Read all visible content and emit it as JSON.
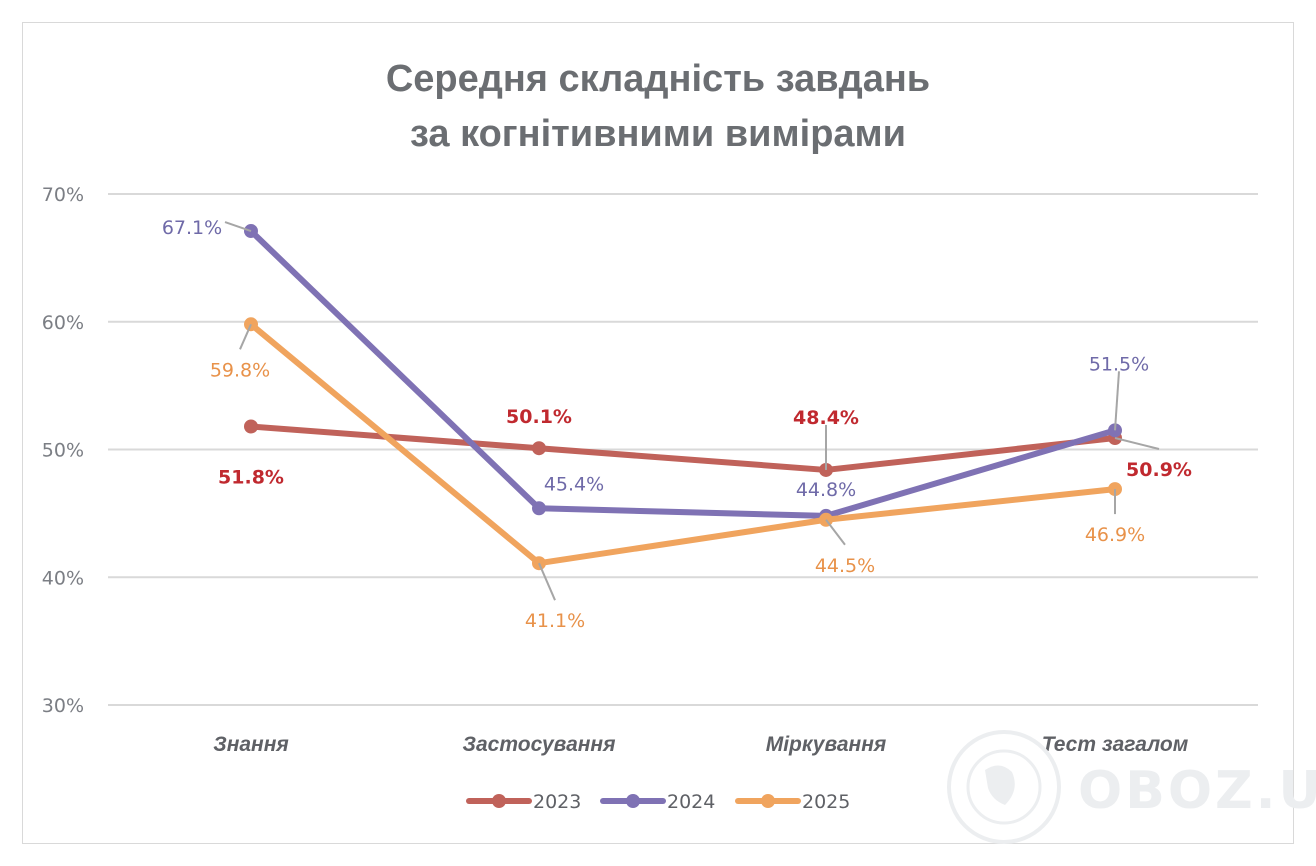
{
  "chart_data": {
    "type": "line",
    "title_lines": [
      "Середня  складність завдань",
      "за когнітивними вимірами"
    ],
    "categories": [
      "Знання",
      "Застосування",
      "Міркування",
      "Тест загалом"
    ],
    "y_ticks": [
      "30%",
      "40%",
      "50%",
      "60%",
      "70%"
    ],
    "ylim": [
      30,
      70
    ],
    "grid": true,
    "legend_position": "bottom",
    "series": [
      {
        "name": "2023",
        "color": "#c0625a",
        "values": [
          51.8,
          50.1,
          48.4,
          50.9
        ],
        "labels": [
          "51.8%",
          "50.1%",
          "48.4%",
          "50.9%"
        ],
        "label_color": "#c0292f",
        "label_bold": true
      },
      {
        "name": "2024",
        "color": "#7f72b4",
        "values": [
          67.1,
          45.4,
          44.8,
          51.5
        ],
        "labels": [
          "67.1%",
          "45.4%",
          "44.8%",
          "51.5%"
        ],
        "label_color": "#6f6aa8",
        "label_bold": false
      },
      {
        "name": "2025",
        "color": "#f0a45e",
        "values": [
          59.8,
          41.1,
          44.5,
          46.9
        ],
        "labels": [
          "59.8%",
          "41.1%",
          "44.5%",
          "46.9%"
        ],
        "label_color": "#e8924a",
        "label_bold": false
      }
    ]
  },
  "watermark": {
    "text": "OBOZ.UA",
    "icon": "globe-icon"
  }
}
